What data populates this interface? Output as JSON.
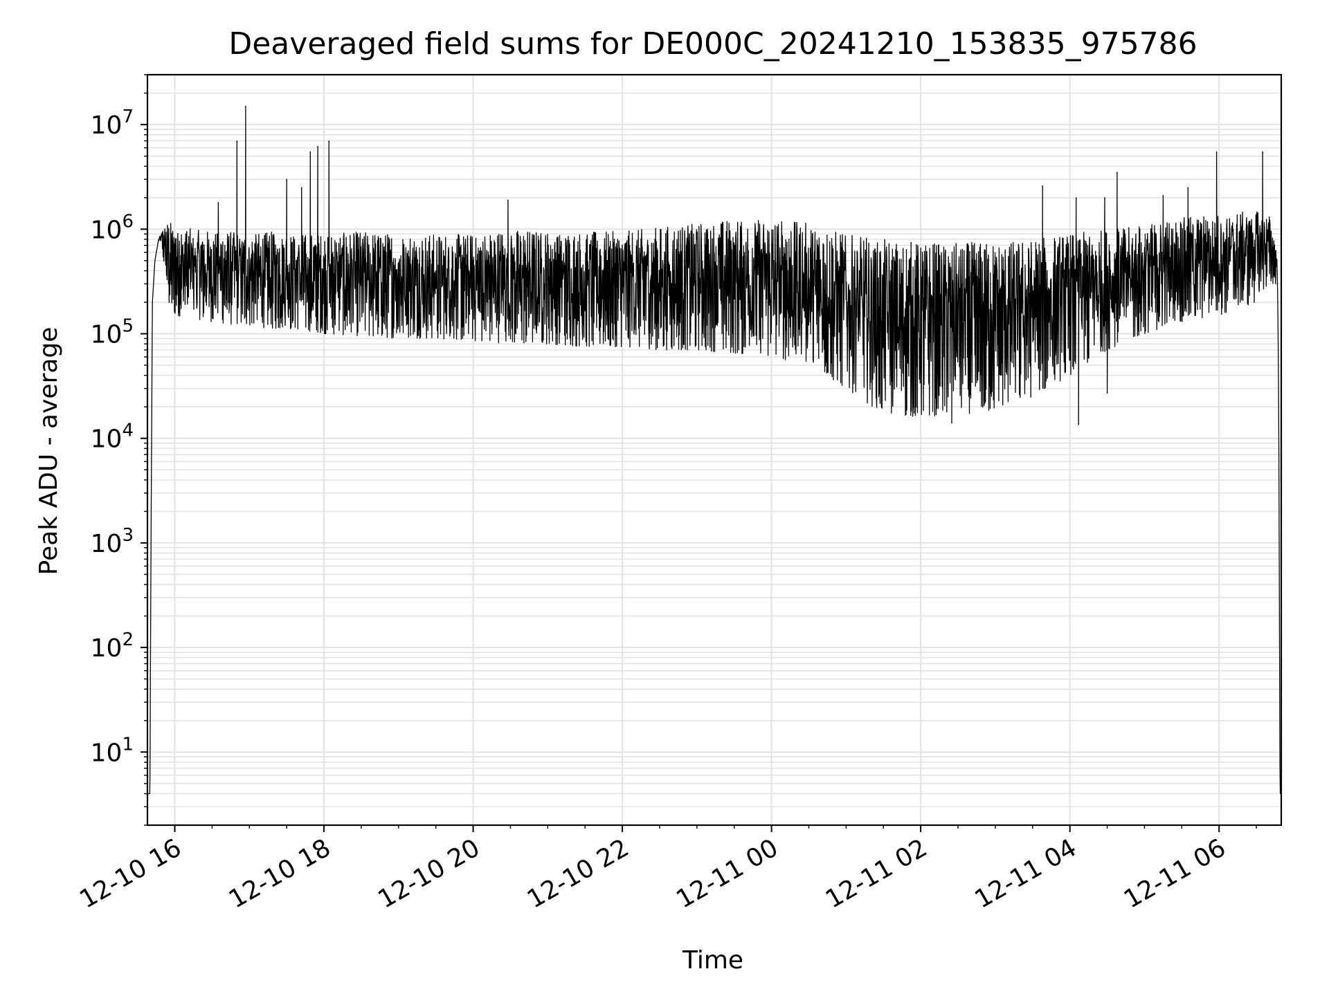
{
  "chart_data": {
    "type": "line",
    "title": "Deaveraged field sums for DE000C_20241210_153835_975786",
    "xlabel": "Time",
    "ylabel": "Peak ADU - average",
    "yscale": "log",
    "ylim": [
      2,
      30000000
    ],
    "xlim": [
      "2024-12-10 15:38",
      "2024-12-11 06:50"
    ],
    "grid": true,
    "line_color": "#000000",
    "grid_color": "#e3e3e3",
    "x_ticks": [
      {
        "t": "2024-12-10 16:00",
        "label": "12-10 16"
      },
      {
        "t": "2024-12-10 18:00",
        "label": "12-10 18"
      },
      {
        "t": "2024-12-10 20:00",
        "label": "12-10 20"
      },
      {
        "t": "2024-12-10 22:00",
        "label": "12-10 22"
      },
      {
        "t": "2024-12-11 00:00",
        "label": "12-11 00"
      },
      {
        "t": "2024-12-11 02:00",
        "label": "12-11 02"
      },
      {
        "t": "2024-12-11 04:00",
        "label": "12-11 04"
      },
      {
        "t": "2024-12-11 06:00",
        "label": "12-11 06"
      }
    ],
    "y_ticks": [
      {
        "value": 10,
        "base": "10",
        "exp": "1"
      },
      {
        "value": 100,
        "base": "10",
        "exp": "2"
      },
      {
        "value": 1000,
        "base": "10",
        "exp": "3"
      },
      {
        "value": 10000,
        "base": "10",
        "exp": "4"
      },
      {
        "value": 100000,
        "base": "10",
        "exp": "5"
      },
      {
        "value": 1000000,
        "base": "10",
        "exp": "6"
      },
      {
        "value": 10000000,
        "base": "10",
        "exp": "7"
      }
    ],
    "series": [
      {
        "x": [
          "2024-12-10 15:38",
          "2024-12-10 15:40",
          "2024-12-10 15:41",
          "2024-12-10 15:42",
          "2024-12-10 15:44",
          "2024-12-10 15:47",
          "2024-12-10 15:50",
          "2024-12-10 15:55",
          "2024-12-10 16:00",
          "2024-12-10 16:15",
          "2024-12-10 16:30",
          "2024-12-10 16:50",
          "2024-12-10 17:00",
          "2024-12-10 17:20",
          "2024-12-10 17:40",
          "2024-12-10 18:00",
          "2024-12-10 18:30",
          "2024-12-10 19:00",
          "2024-12-10 19:30",
          "2024-12-10 20:00",
          "2024-12-10 20:30",
          "2024-12-10 21:00",
          "2024-12-10 21:30",
          "2024-12-10 22:00",
          "2024-12-10 22:30",
          "2024-12-10 23:00",
          "2024-12-10 23:30",
          "2024-12-11 00:00",
          "2024-12-11 00:30",
          "2024-12-11 01:00",
          "2024-12-11 01:30",
          "2024-12-11 02:00",
          "2024-12-11 02:30",
          "2024-12-11 03:00",
          "2024-12-11 03:30",
          "2024-12-11 04:00",
          "2024-12-11 04:30",
          "2024-12-11 05:00",
          "2024-12-11 05:30",
          "2024-12-11 06:00",
          "2024-12-11 06:30",
          "2024-12-11 06:40",
          "2024-12-11 06:45",
          "2024-12-11 06:47",
          "2024-12-11 06:48",
          "2024-12-11 06:49",
          "2024-12-11 06:50"
        ],
        "upper": [
          4,
          4,
          2000,
          200000,
          500000,
          800000,
          1000000,
          1200000,
          1100000,
          1000000,
          950000,
          950000,
          900000,
          950000,
          900000,
          900000,
          950000,
          900000,
          900000,
          900000,
          1000000,
          950000,
          950000,
          950000,
          1050000,
          1150000,
          1250000,
          1250000,
          1150000,
          900000,
          800000,
          750000,
          750000,
          750000,
          800000,
          900000,
          1000000,
          1100000,
          1300000,
          1400000,
          1500000,
          1400000,
          800000,
          500000,
          20000,
          4,
          4
        ],
        "lower": [
          4,
          4,
          2000,
          200000,
          500000,
          800000,
          600000,
          180000,
          150000,
          140000,
          130000,
          120000,
          120000,
          110000,
          110000,
          100000,
          95000,
          90000,
          90000,
          85000,
          80000,
          80000,
          75000,
          75000,
          70000,
          70000,
          65000,
          60000,
          50000,
          30000,
          17000,
          16000,
          17000,
          18000,
          25000,
          40000,
          70000,
          100000,
          130000,
          150000,
          200000,
          300000,
          300000,
          300000,
          20000,
          4,
          4
        ]
      }
    ],
    "spikes": [
      {
        "t": "2024-12-10 16:35",
        "value": 1800000
      },
      {
        "t": "2024-12-10 16:50",
        "value": 7000000
      },
      {
        "t": "2024-12-10 16:57",
        "value": 15000000
      },
      {
        "t": "2024-12-10 17:30",
        "value": 3000000
      },
      {
        "t": "2024-12-10 17:42",
        "value": 2500000
      },
      {
        "t": "2024-12-10 17:49",
        "value": 5500000
      },
      {
        "t": "2024-12-10 17:55",
        "value": 6200000
      },
      {
        "t": "2024-12-10 18:04",
        "value": 7000000
      },
      {
        "t": "2024-12-10 20:28",
        "value": 1900000
      },
      {
        "t": "2024-12-11 03:38",
        "value": 2600000
      },
      {
        "t": "2024-12-11 04:05",
        "value": 2000000
      },
      {
        "t": "2024-12-11 04:28",
        "value": 2000000
      },
      {
        "t": "2024-12-11 04:38",
        "value": 3500000
      },
      {
        "t": "2024-12-11 05:15",
        "value": 2100000
      },
      {
        "t": "2024-12-11 05:35",
        "value": 2500000
      },
      {
        "t": "2024-12-11 05:58",
        "value": 5500000
      },
      {
        "t": "2024-12-11 06:35",
        "value": 5500000
      }
    ],
    "dips": [
      {
        "t": "2024-12-11 02:25",
        "value": 14000
      },
      {
        "t": "2024-12-11 04:07",
        "value": 13500
      },
      {
        "t": "2024-12-11 04:30",
        "value": 27000
      }
    ]
  }
}
